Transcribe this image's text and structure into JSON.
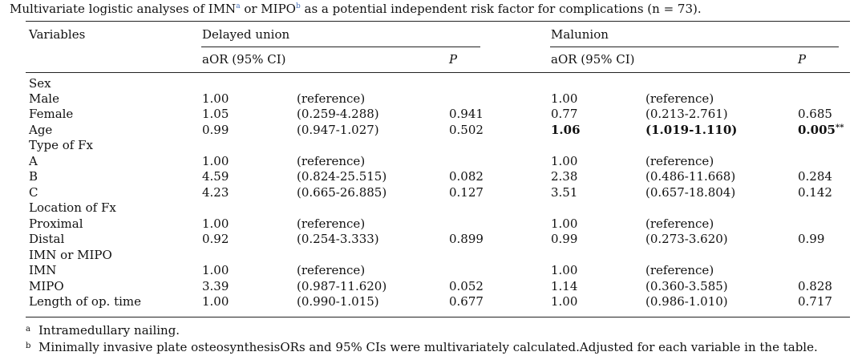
{
  "caption": {
    "before": "Multivariate logistic analyses of IMN",
    "sup_a": "a",
    "middle": " or MIPO",
    "sup_b": "b",
    "after": " as a potential independent risk factor for complications (n = 73)."
  },
  "header": {
    "variables": "Variables",
    "group1": "Delayed union",
    "group2": "Malunion",
    "aor": "aOR (95% CI)",
    "p": "P"
  },
  "rows": [
    {
      "label": "Sex"
    },
    {
      "label": "Male",
      "dz": "1.00",
      "dc": "(reference)",
      "dp": "",
      "mz": "1.00",
      "mc": "(reference)",
      "mp": ""
    },
    {
      "label": "Female",
      "dz": "1.05",
      "dc": "(0.259-4.288)",
      "dp": "0.941",
      "mz": "0.77",
      "mc": "(0.213-2.761)",
      "mp": "0.685"
    },
    {
      "label": "Age",
      "dz": "0.99",
      "dc": "(0.947-1.027)",
      "dp": "0.502",
      "mz": "1.06",
      "mc": "(1.019-1.110)",
      "mp": "0.005",
      "mp_note": "**"
    },
    {
      "label": "Type of Fx"
    },
    {
      "label": "A",
      "dz": "1.00",
      "dc": "(reference)",
      "dp": "",
      "mz": "1.00",
      "mc": "(reference)",
      "mp": ""
    },
    {
      "label": "B",
      "dz": "4.59",
      "dc": "(0.824-25.515)",
      "dp": "0.082",
      "mz": "2.38",
      "mc": "(0.486-11.668)",
      "mp": "0.284"
    },
    {
      "label": "C",
      "dz": "4.23",
      "dc": "(0.665-26.885)",
      "dp": "0.127",
      "mz": "3.51",
      "mc": "(0.657-18.804)",
      "mp": "0.142"
    },
    {
      "label": "Location of Fx"
    },
    {
      "label": "Proximal",
      "dz": "1.00",
      "dc": "(reference)",
      "dp": "",
      "mz": "1.00",
      "mc": "(reference)",
      "mp": ""
    },
    {
      "label": "Distal",
      "dz": "0.92",
      "dc": "(0.254-3.333)",
      "dp": "0.899",
      "mz": "0.99",
      "mc": "(0.273-3.620)",
      "mp": "0.99"
    },
    {
      "label": "IMN or MIPO"
    },
    {
      "label": "IMN",
      "dz": "1.00",
      "dc": "(reference)",
      "dp": "",
      "mz": "1.00",
      "mc": "(reference)",
      "mp": ""
    },
    {
      "label": "MIPO",
      "dz": "3.39",
      "dc": "(0.987-11.620)",
      "dp": "0.052",
      "mz": "1.14",
      "mc": "(0.360-3.585)",
      "mp": "0.828"
    },
    {
      "label": "Length of op. time",
      "dz": "1.00",
      "dc": "(0.990-1.015)",
      "dp": "0.677",
      "mz": "1.00",
      "mc": "(0.986-1.010)",
      "mp": "0.717"
    }
  ],
  "footnotes": [
    {
      "mark": "a",
      "text": "Intramedullary nailing."
    },
    {
      "mark": "b",
      "text": "Minimally invasive plate osteosynthesisORs and 95% CIs were multivariately calculated.Adjusted for each variable in the table."
    }
  ]
}
